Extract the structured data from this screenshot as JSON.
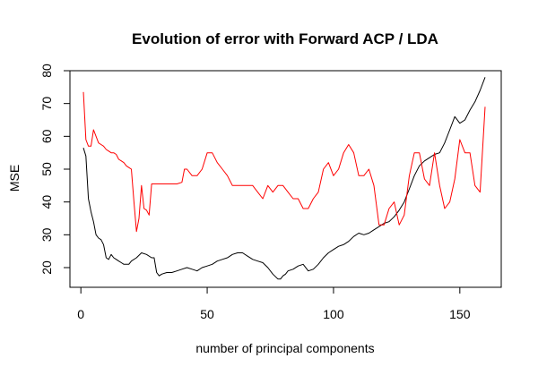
{
  "chart_data": {
    "type": "line",
    "title": "Evolution of error with Forward ACP / LDA",
    "xlabel": "number of principal components",
    "ylabel": "MSE",
    "xlim": [
      1,
      160
    ],
    "ylim": [
      16,
      80
    ],
    "xticks": [
      0,
      50,
      100,
      150
    ],
    "yticks": [
      20,
      30,
      40,
      50,
      60,
      70,
      80
    ],
    "grid": false,
    "legend": "none",
    "series": [
      {
        "color": "#000000",
        "x": [
          1,
          2,
          3,
          4,
          5,
          6,
          7,
          8,
          9,
          10,
          11,
          12,
          13,
          14,
          15,
          16,
          17,
          18,
          19,
          20,
          22,
          24,
          26,
          28,
          29,
          30,
          31,
          32,
          34,
          36,
          38,
          40,
          42,
          44,
          46,
          48,
          50,
          52,
          54,
          56,
          58,
          60,
          62,
          64,
          66,
          68,
          70,
          72,
          74,
          76,
          78,
          79,
          80,
          81,
          82,
          84,
          86,
          88,
          90,
          92,
          94,
          96,
          98,
          100,
          102,
          104,
          106,
          108,
          110,
          112,
          114,
          116,
          118,
          120,
          122,
          124,
          126,
          128,
          130,
          132,
          134,
          136,
          138,
          140,
          142,
          144,
          146,
          148,
          150,
          152,
          154,
          156,
          158,
          160
        ],
        "y": [
          56.5,
          54,
          41,
          37,
          34,
          30,
          29,
          28.5,
          27,
          23,
          22.5,
          24,
          23,
          22.5,
          22,
          21.5,
          21,
          21,
          21,
          22,
          23,
          24.5,
          24,
          23,
          23,
          18.5,
          17.5,
          18,
          18.5,
          18.5,
          19,
          19.5,
          20,
          19.5,
          19,
          20,
          20.5,
          21,
          22,
          22.5,
          23,
          24,
          24.5,
          24.5,
          23.5,
          22.5,
          22,
          21.5,
          20,
          18,
          16.5,
          16.5,
          17.5,
          18,
          19,
          19.5,
          20.5,
          21,
          19,
          19.5,
          21,
          23,
          24.5,
          25.5,
          26.5,
          27,
          28,
          29.5,
          30.5,
          30,
          30.5,
          31.5,
          32.5,
          33.5,
          34,
          35.5,
          37.5,
          40,
          44,
          48,
          51,
          52.5,
          53.5,
          54.5,
          55,
          58,
          62,
          66,
          64,
          65,
          68,
          70.5,
          74,
          78
        ]
      },
      {
        "color": "#ff0000",
        "x": [
          1,
          2,
          3,
          4,
          5,
          6,
          7,
          8,
          9,
          10,
          11,
          12,
          13,
          14,
          15,
          16,
          17,
          18,
          19,
          20,
          21,
          22,
          23,
          24,
          25,
          26,
          27,
          28,
          29,
          30,
          32,
          34,
          36,
          38,
          40,
          41,
          42,
          44,
          46,
          48,
          50,
          52,
          54,
          56,
          58,
          60,
          62,
          64,
          66,
          68,
          70,
          72,
          74,
          76,
          78,
          80,
          82,
          84,
          86,
          88,
          90,
          92,
          94,
          96,
          98,
          100,
          102,
          104,
          106,
          108,
          110,
          112,
          114,
          116,
          118,
          120,
          122,
          124,
          126,
          128,
          130,
          132,
          134,
          136,
          138,
          140,
          142,
          144,
          146,
          148,
          150,
          152,
          154,
          156,
          158,
          160
        ],
        "y": [
          73.5,
          59,
          57,
          57,
          62,
          60,
          58,
          57.5,
          57,
          56,
          55.5,
          55,
          55,
          54.5,
          53,
          52.5,
          52,
          51,
          50.5,
          50,
          40,
          31,
          35,
          45,
          38,
          37.5,
          36,
          45.5,
          45.5,
          45.5,
          45.5,
          45.5,
          45.5,
          45.5,
          46,
          50,
          50,
          48,
          48,
          50,
          55,
          55,
          52,
          50,
          48,
          45,
          45,
          45,
          45,
          45,
          43,
          41,
          45,
          43,
          45,
          45,
          43,
          41,
          41,
          38,
          38,
          41,
          43,
          50,
          52,
          48,
          50,
          55,
          57.5,
          55,
          48,
          48,
          50,
          45,
          33,
          33,
          38,
          40,
          33,
          36,
          48,
          55,
          55,
          47,
          45,
          55,
          45,
          38,
          40,
          47,
          59,
          55,
          55,
          45,
          43,
          69
        ]
      }
    ]
  }
}
